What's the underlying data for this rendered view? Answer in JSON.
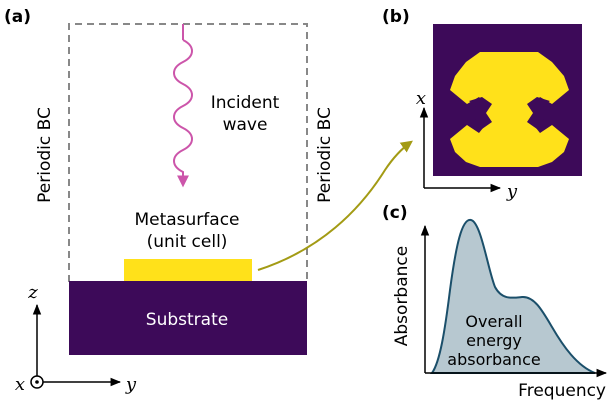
{
  "panel_a": {
    "label": "(a)",
    "left_bc": "Periodic BC",
    "right_bc": "Periodic BC",
    "incident_line1": "Incident",
    "incident_line2": "wave",
    "metasurface_line1": "Metasurface",
    "metasurface_line2": "(unit cell)",
    "substrate": "Substrate",
    "axis_z": "z",
    "axis_x": "x",
    "axis_y": "y"
  },
  "panel_b": {
    "label": "(b)",
    "axis_x": "x",
    "axis_y": "y"
  },
  "panel_c": {
    "label": "(c)",
    "ylabel": "Absorbance",
    "xlabel": "Frequency",
    "annotation_line1": "Overall",
    "annotation_line2": "energy",
    "annotation_line3": "absorbance"
  },
  "colors": {
    "substrate": "#3d0a59",
    "metasurface": "#ffe11a",
    "incident_wave": "#cc55aa",
    "link_arrow": "#a39b14",
    "curve_fill": "#b7c8d0",
    "curve_stroke": "#1b4f6a",
    "boundary": "#888888"
  }
}
